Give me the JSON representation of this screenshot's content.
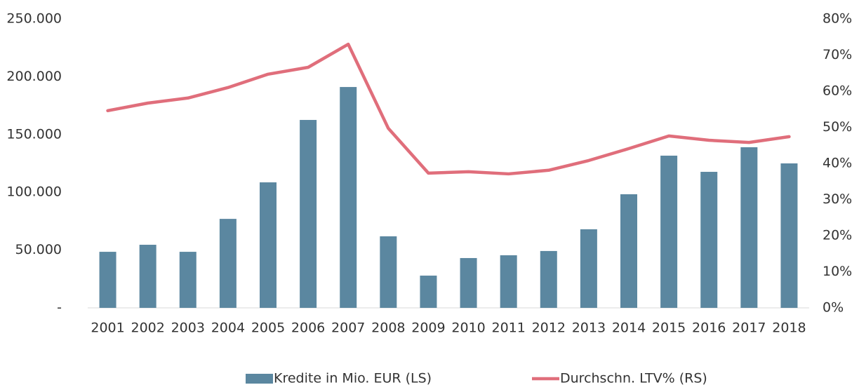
{
  "chart_data": {
    "type": "bar",
    "categories": [
      "2001",
      "2002",
      "2003",
      "2004",
      "2005",
      "2006",
      "2007",
      "2008",
      "2009",
      "2010",
      "2011",
      "2012",
      "2013",
      "2014",
      "2015",
      "2016",
      "2017",
      "2018"
    ],
    "series": [
      {
        "name": "Kredite in Mio. EUR (LS)",
        "type": "bar",
        "color": "#5b87a0",
        "values": [
          48500,
          54600,
          48500,
          77000,
          108600,
          162600,
          191100,
          61900,
          27900,
          43100,
          45500,
          49200,
          68000,
          98300,
          131700,
          117700,
          139000,
          125000
        ]
      },
      {
        "name": "Durchschn. LTV% (RS)",
        "type": "line",
        "axis": "y2",
        "color": "#e06e7b",
        "values": [
          54.6,
          56.7,
          58.1,
          61,
          64.7,
          66.6,
          73,
          49.7,
          37.3,
          37.7,
          37.1,
          38.1,
          40.8,
          44.1,
          47.6,
          46.4,
          45.8,
          47.4
        ]
      }
    ],
    "ylim": [
      0,
      250000
    ],
    "yticks": [
      {
        "value": 0,
        "label": "-"
      },
      {
        "value": 50000,
        "label": "50.000"
      },
      {
        "value": 100000,
        "label": "100.000"
      },
      {
        "value": 150000,
        "label": "150.000"
      },
      {
        "value": 200000,
        "label": "200.000"
      },
      {
        "value": 250000,
        "label": "250.000"
      }
    ],
    "y2lim": [
      0,
      80
    ],
    "y2ticks": [
      {
        "value": 0,
        "label": "0%"
      },
      {
        "value": 10,
        "label": "10%"
      },
      {
        "value": 20,
        "label": "20%"
      },
      {
        "value": 30,
        "label": "30%"
      },
      {
        "value": 40,
        "label": "40%"
      },
      {
        "value": 50,
        "label": "50%"
      },
      {
        "value": 60,
        "label": "60%"
      },
      {
        "value": 70,
        "label": "70%"
      },
      {
        "value": 80,
        "label": "80%"
      }
    ],
    "grid": false,
    "legend": "bottom"
  }
}
